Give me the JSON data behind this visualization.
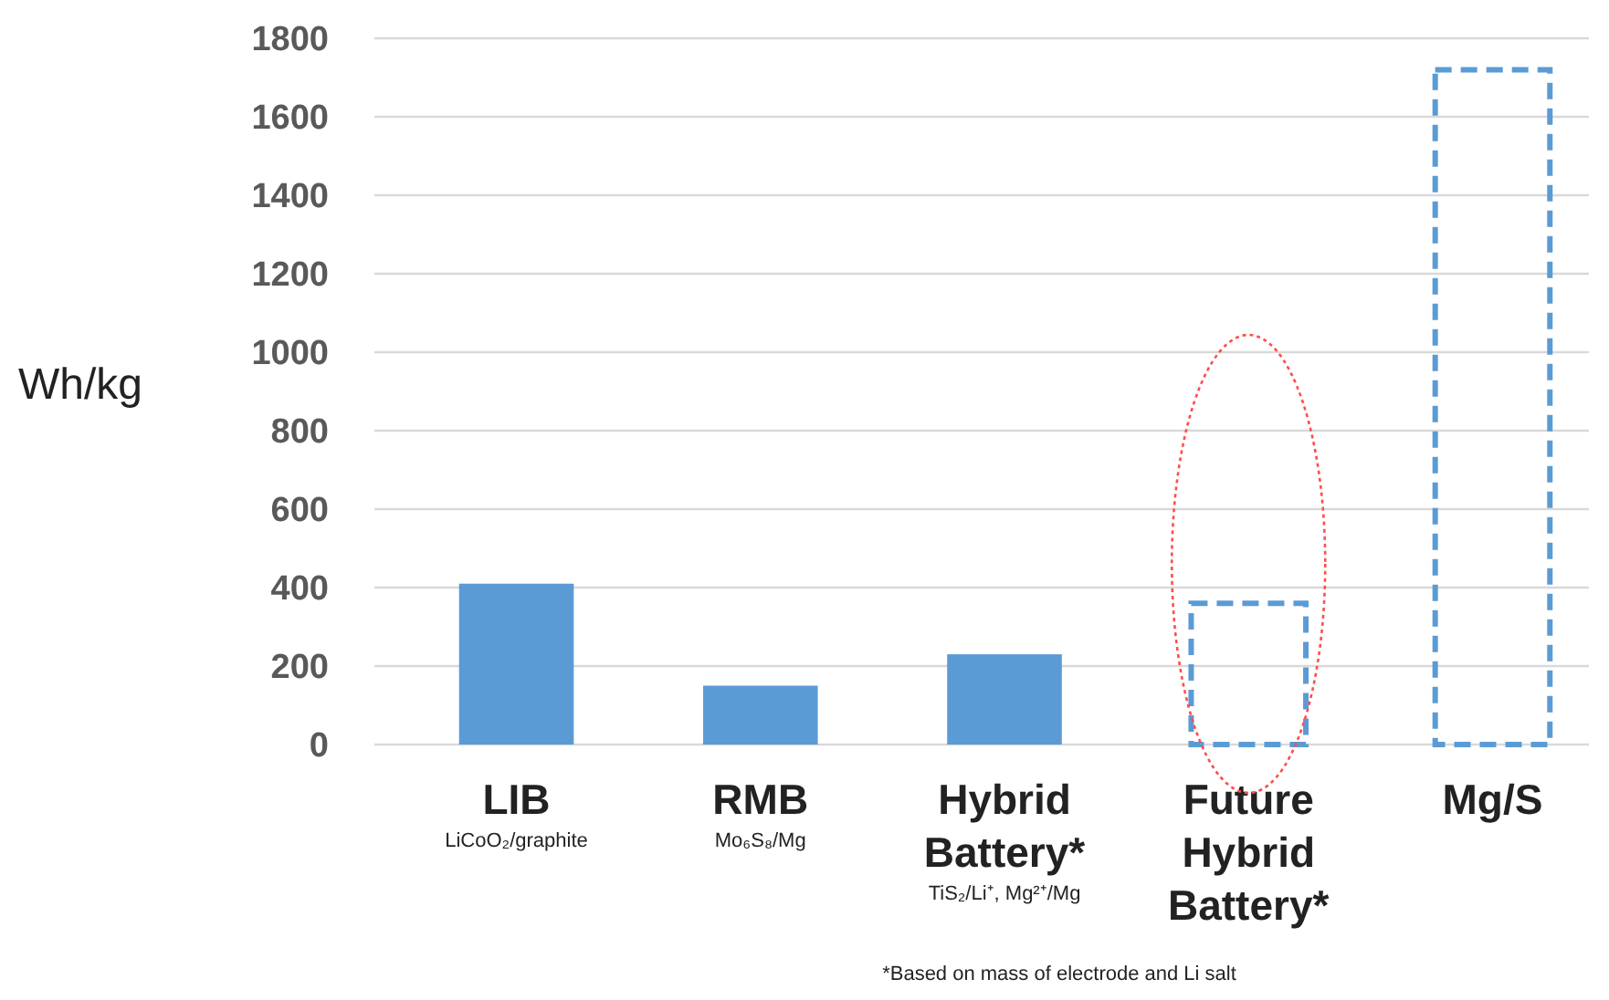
{
  "chart_data": {
    "type": "bar",
    "ylabel": "Wh/kg",
    "categories": [
      "LIB\nLiCoO₂/graphite",
      "RMB\nMo₆S₈/Mg",
      "Hybrid Battery*\nTiS₂/Li⁺, Mg²⁺/Mg",
      "Future Hybrid Battery*",
      "Mg/S"
    ],
    "series": [
      {
        "color": "#5b9bd5",
        "values": [
          410,
          150,
          230,
          null,
          null
        ]
      },
      {
        "color": "#5b9bd5",
        "line_style": "dashed",
        "values": [
          null,
          null,
          null,
          360,
          1720
        ]
      }
    ],
    "ylim": [
      0,
      1800
    ],
    "yticks": [
      0,
      200,
      400,
      600,
      800,
      1000,
      1200,
      1400,
      1600,
      1800
    ],
    "grid": "y",
    "annotations": [
      "*Based on mass of electrode and Li salt"
    ]
  }
}
